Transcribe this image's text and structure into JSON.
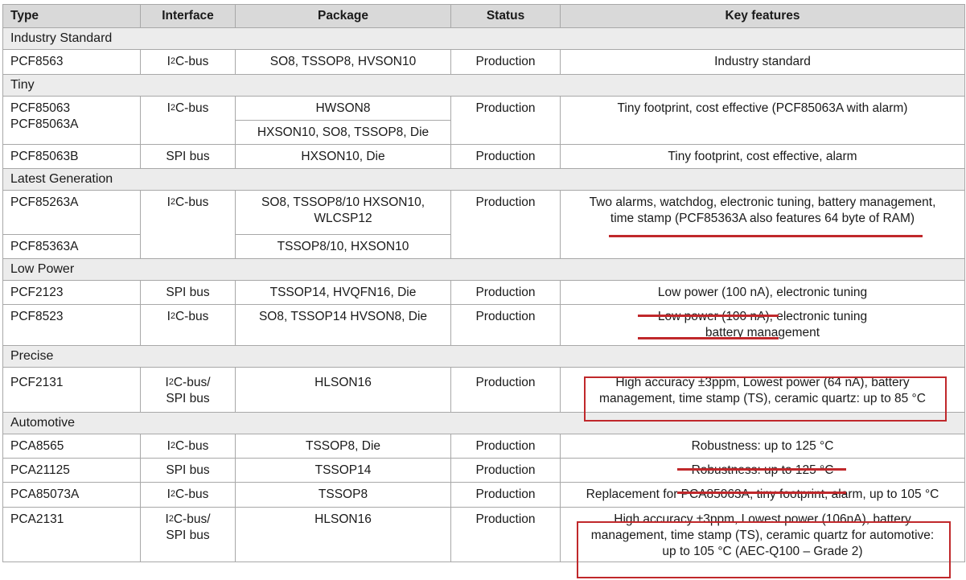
{
  "headers": {
    "type": "Type",
    "interface": "Interface",
    "package": "Package",
    "status": "Status",
    "features": "Key features"
  },
  "interfaces": {
    "i2c": "C-bus",
    "i2c_sup": "2",
    "i_prefix": "I",
    "i2c_slash": "C-bus/",
    "spi": "SPI bus"
  },
  "groups": {
    "industry": "Industry Standard",
    "tiny": "Tiny",
    "latest": "Latest Generation",
    "lowpower": "Low Power",
    "precise": "Precise",
    "automotive": "Automotive"
  },
  "rows": {
    "pcf8563": {
      "type": "PCF8563",
      "package": "SO8, TSSOP8, HVSON10",
      "status": "Production",
      "features": "Industry standard"
    },
    "pcf85063": {
      "type1": "PCF85063",
      "type2": "PCF85063A",
      "package1": "HWSON8",
      "package2": "HXSON10, SO8, TSSOP8, Die",
      "status": "Production",
      "features": "Tiny footprint, cost effective (PCF85063A with alarm)"
    },
    "pcf85063b": {
      "type": "PCF85063B",
      "package": "HXSON10, Die",
      "status": "Production",
      "features": "Tiny footprint, cost effective, alarm"
    },
    "pcf85263a": {
      "type": "PCF85263A",
      "package1": "SO8, TSSOP8/10 HXSON10,",
      "package2": "WLCSP12",
      "status": "Production",
      "features1": "Two alarms, watchdog, electronic tuning, battery management,",
      "features2": "time stamp (PCF85363A also features 64 byte of RAM)"
    },
    "pcf85363a": {
      "type": "PCF85363A",
      "package": "TSSOP8/10, HXSON10"
    },
    "pcf2123": {
      "type": "PCF2123",
      "package": "TSSOP14, HVQFN16, Die",
      "status": "Production",
      "features": "Low power (100 nA), electronic tuning"
    },
    "pcf8523": {
      "type": "PCF8523",
      "package": "SO8, TSSOP14 HVSON8, Die",
      "status": "Production",
      "features1": "Low power (100 nA), electronic tuning",
      "features2": "battery management"
    },
    "pcf2131": {
      "type": "PCF2131",
      "package": "HLSON16",
      "status": "Production",
      "features1": "High accuracy ±3ppm, Lowest power (64 nA), battery",
      "features2": "management, time stamp (TS), ceramic quartz: up to 85 °C"
    },
    "pca8565": {
      "type": "PCA8565",
      "package": "TSSOP8, Die",
      "status": "Production",
      "features": "Robustness: up to 125 °C"
    },
    "pca21125": {
      "type": "PCA21125",
      "package": "TSSOP14",
      "status": "Production",
      "features": "Robustness: up to 125 °C"
    },
    "pca85073a": {
      "type": "PCA85073A",
      "package": "TSSOP8",
      "status": "Production",
      "features": "Replacement for PCA85063A, tiny footprint, alarm, up to 105 °C"
    },
    "pca2131": {
      "type": "PCA2131",
      "package": "HLSON16",
      "status": "Production",
      "features1": "High accuracy ±3ppm, Lowest power (106nA), battery",
      "features2": "management, time stamp (TS), ceramic quartz for automotive:",
      "features3": "up to 105 °C (AEC-Q100 – Grade 2)"
    }
  },
  "colors": {
    "accent": "#c0282b",
    "header_bg": "#d9d9d9",
    "group_bg": "#ececec"
  }
}
